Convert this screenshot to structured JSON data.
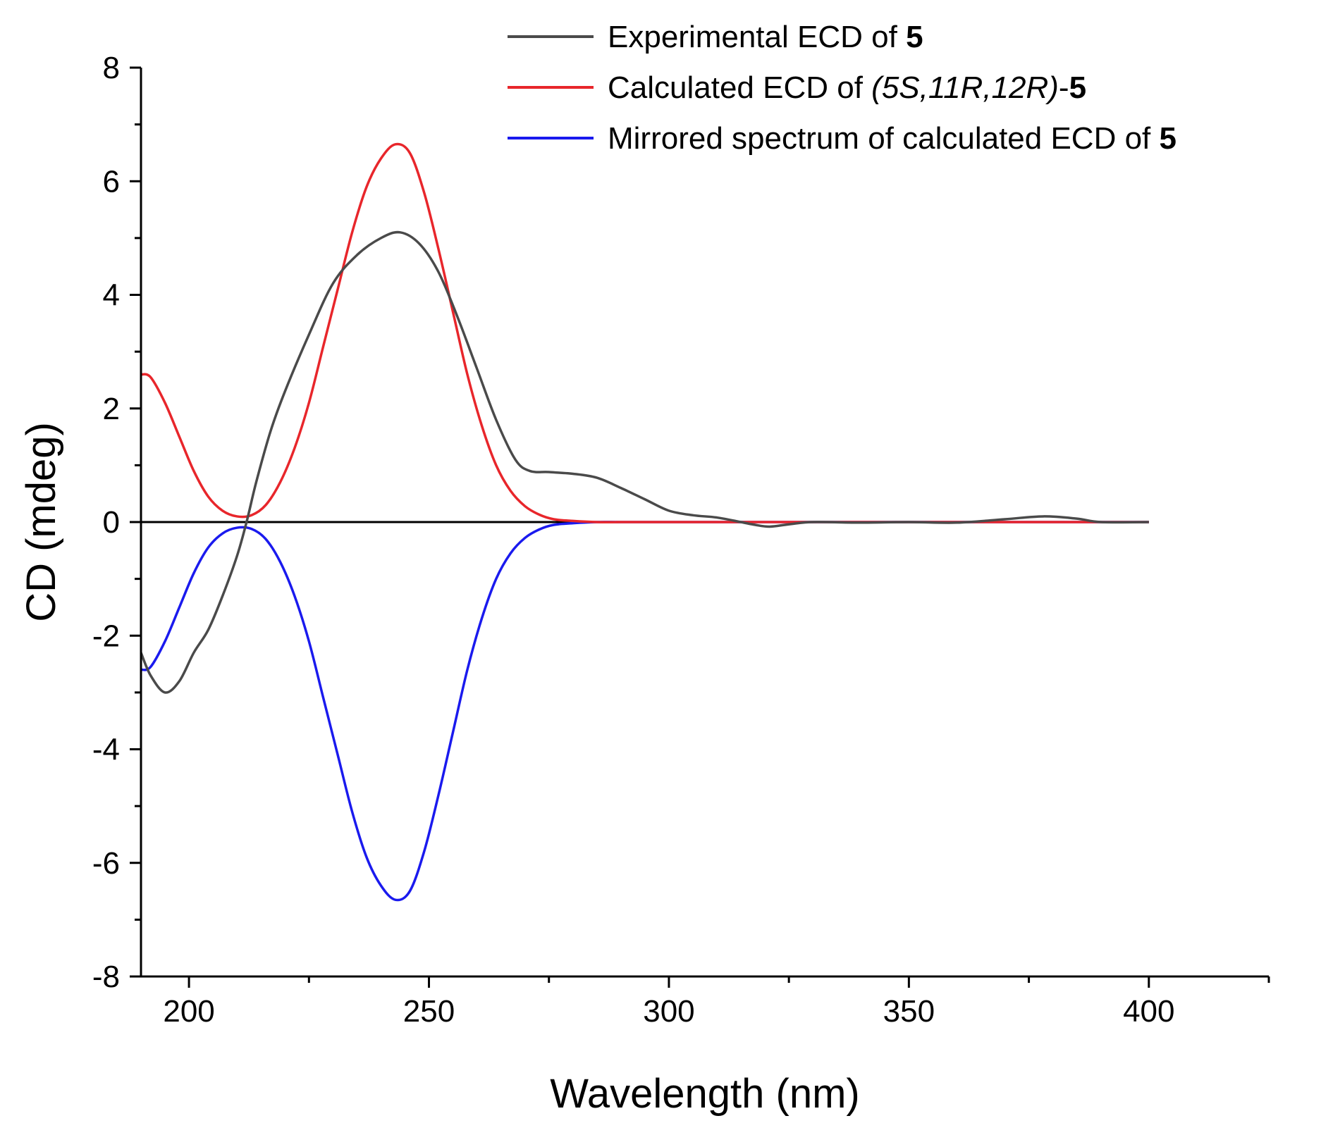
{
  "chart_data": {
    "type": "line",
    "title": "",
    "xlabel": "Wavelength (nm)",
    "ylabel": "CD (mdeg)",
    "xlim": [
      190,
      425
    ],
    "ylim": [
      -8,
      8
    ],
    "x_ticks": [
      200,
      250,
      300,
      350,
      400
    ],
    "y_ticks": [
      -8,
      -6,
      -4,
      -2,
      0,
      2,
      4,
      6,
      8
    ],
    "grid": false,
    "legend_position": "top-right",
    "zero_line": true,
    "series": [
      {
        "name_prefix": "Experimental ECD of ",
        "name_italic": "",
        "name_mid": "",
        "name_bold": "5",
        "color": "#4a4a4a",
        "x": [
          190,
          192,
          195,
          198,
          201,
          204,
          207,
          210,
          212,
          214,
          217,
          220,
          225,
          230,
          235,
          240,
          244,
          248,
          252,
          256,
          260,
          264,
          268,
          271,
          275,
          280,
          285,
          290,
          295,
          300,
          305,
          310,
          315,
          318,
          321,
          325,
          330,
          340,
          350,
          360,
          370,
          378,
          385,
          390,
          400
        ],
        "y": [
          -2.3,
          -2.7,
          -3.0,
          -2.8,
          -2.3,
          -1.9,
          -1.3,
          -0.6,
          0.0,
          0.7,
          1.6,
          2.3,
          3.3,
          4.2,
          4.7,
          5.0,
          5.1,
          4.9,
          4.4,
          3.6,
          2.7,
          1.8,
          1.1,
          0.9,
          0.88,
          0.85,
          0.78,
          0.6,
          0.4,
          0.2,
          0.12,
          0.08,
          0.0,
          -0.05,
          -0.08,
          -0.04,
          0.0,
          -0.01,
          0.0,
          -0.01,
          0.05,
          0.1,
          0.06,
          0.0,
          0.0
        ]
      },
      {
        "name_prefix": "Calculated ECD of ",
        "name_italic": "(5S,11R,12R)",
        "name_mid": "-",
        "name_bold": "5",
        "color": "#e8262b",
        "x": [
          190,
          192,
          195,
          198,
          201,
          204,
          207,
          210,
          213,
          216,
          219,
          222,
          225,
          228,
          231,
          234,
          237,
          240,
          243,
          246,
          249,
          252,
          255,
          258,
          261,
          264,
          267,
          270,
          273,
          276,
          280,
          285,
          290,
          300,
          400
        ],
        "y": [
          2.6,
          2.55,
          2.1,
          1.5,
          0.9,
          0.45,
          0.2,
          0.1,
          0.12,
          0.3,
          0.7,
          1.3,
          2.1,
          3.1,
          4.1,
          5.1,
          5.9,
          6.4,
          6.65,
          6.5,
          5.8,
          4.8,
          3.7,
          2.6,
          1.7,
          1.0,
          0.55,
          0.28,
          0.13,
          0.05,
          0.02,
          0.0,
          0.0,
          0.0,
          0.0
        ]
      },
      {
        "name_prefix": "Mirrored spectrum of calculated ECD of ",
        "name_italic": "",
        "name_mid": "",
        "name_bold": "5",
        "color": "#1a1aee",
        "x": [
          190,
          192,
          195,
          198,
          201,
          204,
          207,
          210,
          213,
          216,
          219,
          222,
          225,
          228,
          231,
          234,
          237,
          240,
          243,
          246,
          249,
          252,
          255,
          258,
          261,
          264,
          267,
          270,
          273,
          276,
          280,
          285,
          290,
          300,
          400
        ],
        "y": [
          -2.6,
          -2.55,
          -2.1,
          -1.5,
          -0.9,
          -0.45,
          -0.2,
          -0.1,
          -0.12,
          -0.3,
          -0.7,
          -1.3,
          -2.1,
          -3.1,
          -4.1,
          -5.1,
          -5.9,
          -6.4,
          -6.65,
          -6.5,
          -5.8,
          -4.8,
          -3.7,
          -2.6,
          -1.7,
          -1.0,
          -0.55,
          -0.28,
          -0.13,
          -0.05,
          -0.02,
          0.0,
          0.0,
          0.0,
          0.0
        ]
      }
    ]
  }
}
